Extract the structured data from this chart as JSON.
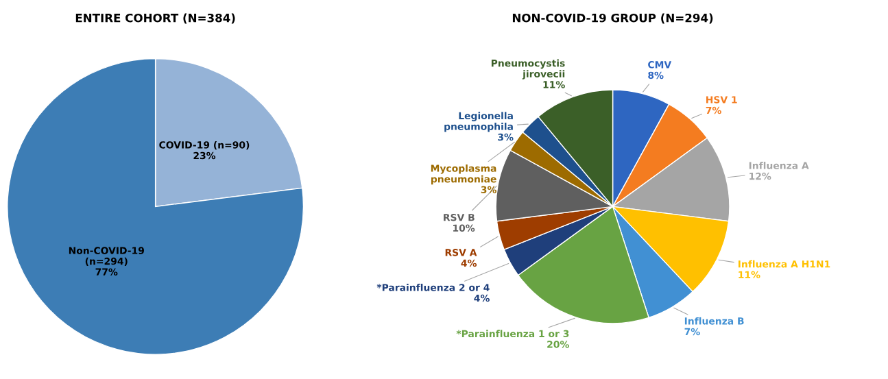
{
  "chart_data": [
    {
      "type": "pie",
      "title": "ENTIRE COHORT (N=384)",
      "categories": [
        "COVID-19 (n=90)",
        "Non-COVID-19\n(n=294)"
      ],
      "values": [
        23,
        77
      ],
      "value_labels": [
        "23%",
        "77%"
      ],
      "colors": [
        "#95b3d7",
        "#3d7db5"
      ],
      "legend": false
    },
    {
      "type": "pie",
      "title": "NON-COVID-19 GROUP (N=294)",
      "categories": [
        "CMV",
        "HSV 1",
        "Influenza A",
        "Influenza A H1N1",
        "Influenza B",
        "*Parainfluenza 1 or 3",
        "*Parainfluenza 2 or 4",
        "RSV A",
        "RSV B",
        "Mycoplasma\npneumoniae",
        "Legionella\npneumophila",
        "Pneumocystis\njirovecii"
      ],
      "values": [
        8,
        7,
        12,
        11,
        7,
        20,
        4,
        4,
        10,
        3,
        3,
        11
      ],
      "value_labels": [
        "8%",
        "7%",
        "12%",
        "11%",
        "7%",
        "20%",
        "4%",
        "4%",
        "10%",
        "3%",
        "3%",
        "11%"
      ],
      "colors": [
        "#2e66c1",
        "#f47c20",
        "#a5a5a5",
        "#ffc000",
        "#4190d3",
        "#68a343",
        "#1f3f7b",
        "#9e3d00",
        "#5f5f5f",
        "#9d6b00",
        "#1e508d",
        "#3b5f28"
      ],
      "legend": false
    }
  ]
}
